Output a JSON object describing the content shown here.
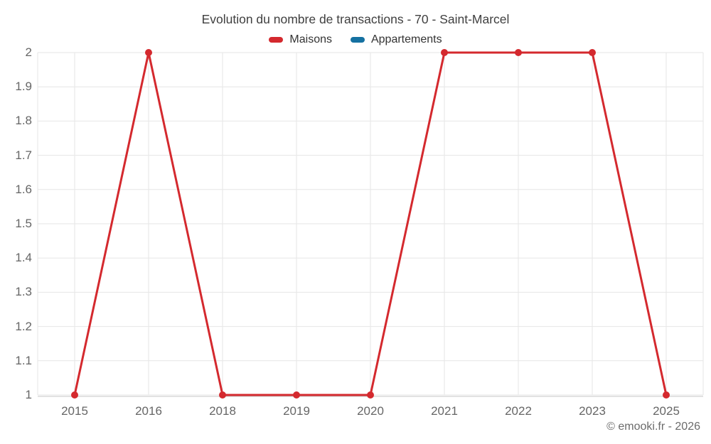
{
  "chart": {
    "title": "Evolution du nombre de transactions - 70 - Saint-Marcel",
    "watermark": "© emooki.fr - 2026"
  },
  "chart_data": {
    "type": "line",
    "title": "Evolution du nombre de transactions - 70 - Saint-Marcel",
    "categories": [
      "2015",
      "2016",
      "2018",
      "2019",
      "2020",
      "2021",
      "2022",
      "2023",
      "2025"
    ],
    "series": [
      {
        "name": "Maisons",
        "color": "#d4292e",
        "values": [
          1,
          2,
          1,
          1,
          1,
          2,
          2,
          2,
          1
        ]
      },
      {
        "name": "Appartements",
        "color": "#1571a1",
        "values": []
      }
    ],
    "xlabel": "",
    "ylabel": "",
    "ylim": [
      1,
      2
    ],
    "ytick_step": 0.1,
    "ytick_labels": [
      "1",
      "1.1",
      "1.2",
      "1.3",
      "1.4",
      "1.5",
      "1.6",
      "1.7",
      "1.8",
      "1.9",
      "2"
    ],
    "grid": true,
    "legend_position": "top",
    "marker_radius": 5,
    "line_width": 3,
    "watermark": "© emooki.fr - 2026"
  }
}
